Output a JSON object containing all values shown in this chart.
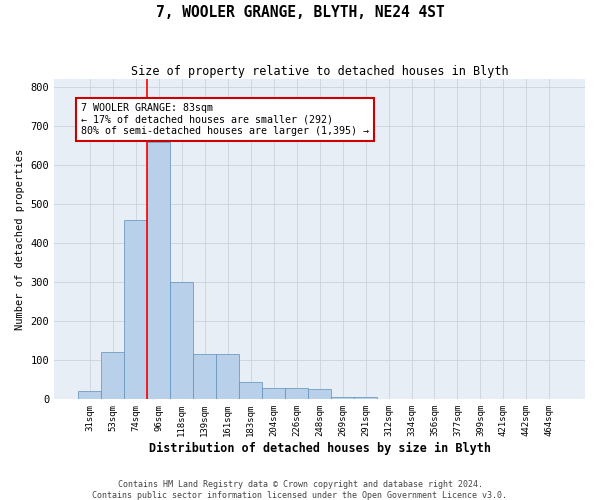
{
  "title": "7, WOOLER GRANGE, BLYTH, NE24 4ST",
  "subtitle": "Size of property relative to detached houses in Blyth",
  "xlabel": "Distribution of detached houses by size in Blyth",
  "ylabel": "Number of detached properties",
  "footer_line1": "Contains HM Land Registry data © Crown copyright and database right 2024.",
  "footer_line2": "Contains public sector information licensed under the Open Government Licence v3.0.",
  "categories": [
    "31sqm",
    "53sqm",
    "74sqm",
    "96sqm",
    "118sqm",
    "139sqm",
    "161sqm",
    "183sqm",
    "204sqm",
    "226sqm",
    "248sqm",
    "269sqm",
    "291sqm",
    "312sqm",
    "334sqm",
    "356sqm",
    "377sqm",
    "399sqm",
    "421sqm",
    "442sqm",
    "464sqm"
  ],
  "values": [
    20,
    120,
    460,
    660,
    300,
    115,
    115,
    45,
    30,
    30,
    25,
    5,
    5,
    0,
    0,
    0,
    0,
    0,
    0,
    0,
    0
  ],
  "bar_color": "#b8d0ea",
  "bar_edge_color": "#6090b8",
  "grid_color": "#c8d4e0",
  "bg_color": "#e8eef5",
  "red_line_x": 2.5,
  "annotation_text": "7 WOOLER GRANGE: 83sqm\n← 17% of detached houses are smaller (292)\n80% of semi-detached houses are larger (1,395) →",
  "annotation_box_color": "#ffffff",
  "annotation_border_color": "#cc0000",
  "ylim": [
    0,
    820
  ],
  "yticks": [
    0,
    100,
    200,
    300,
    400,
    500,
    600,
    700,
    800
  ]
}
